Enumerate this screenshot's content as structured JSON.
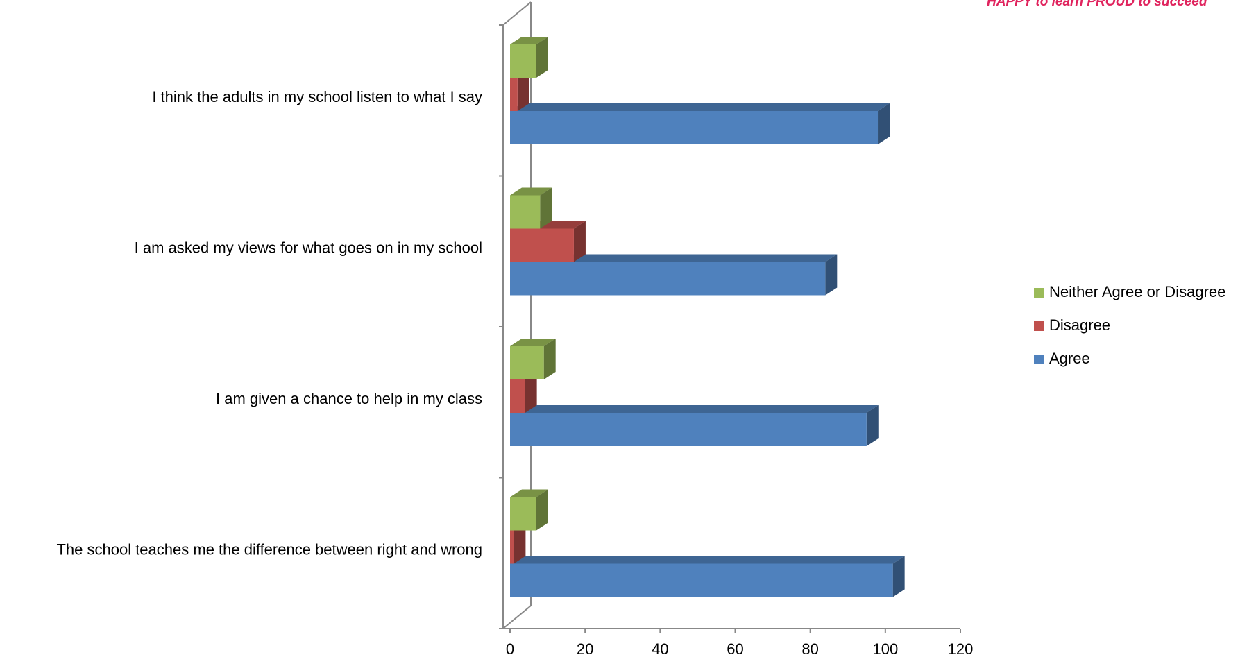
{
  "banner": {
    "part1": "HAPPY",
    "part2": " to learn ",
    "part3": "PROUD",
    "part4": " to succeed"
  },
  "chart_data": {
    "type": "bar",
    "orientation": "horizontal",
    "style": "3d",
    "categories": [
      "I think the adults in my school listen to what I say",
      "I am asked my views for what goes on in my school",
      "I am given a chance to help in my class",
      "The school teaches me the difference between right and wrong"
    ],
    "series": [
      {
        "name": "Agree",
        "color": "#4F81BD",
        "values": [
          98,
          84,
          95,
          102
        ]
      },
      {
        "name": "Disagree",
        "color": "#C0504D",
        "values": [
          2,
          17,
          4,
          1
        ]
      },
      {
        "name": "Neither Agree or Disagree",
        "color": "#9BBB59",
        "values": [
          7,
          8,
          9,
          7
        ]
      }
    ],
    "xlim": [
      0,
      120
    ],
    "xticks": [
      "0",
      "20",
      "40",
      "60",
      "80",
      "100",
      "120"
    ],
    "legend": {
      "position": "right",
      "entries": [
        "Neither Agree or Disagree",
        "Disagree",
        "Agree"
      ]
    },
    "grid": false
  }
}
